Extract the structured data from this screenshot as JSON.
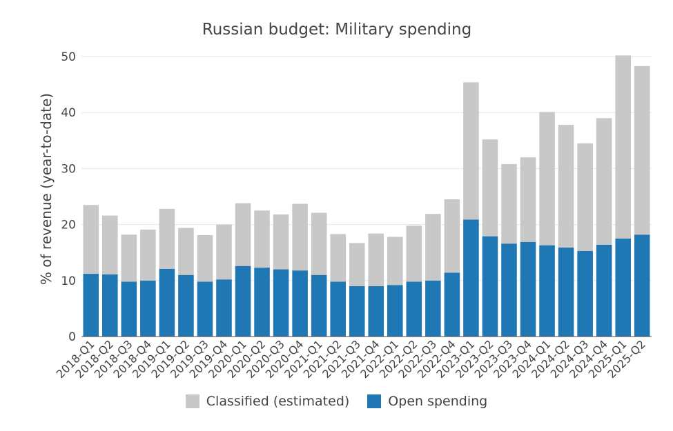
{
  "chart_data": {
    "type": "bar",
    "stacked": true,
    "title": "Russian budget: Military spending",
    "xlabel": "",
    "ylabel": "% of revenue (year-to-date)",
    "ylim": [
      0,
      50
    ],
    "yticks": [
      0,
      10,
      20,
      30,
      40,
      50
    ],
    "grid": true,
    "legend_position": "bottom",
    "categories": [
      "2018-Q1",
      "2018-Q2",
      "2018-Q3",
      "2018-Q4",
      "2019-Q1",
      "2019-Q2",
      "2019-Q3",
      "2019-Q4",
      "2020-Q1",
      "2020-Q2",
      "2020-Q3",
      "2020-Q4",
      "2021-Q1",
      "2021-Q2",
      "2021-Q3",
      "2021-Q4",
      "2022-Q1",
      "2022-Q2",
      "2022-Q3",
      "2022-Q4",
      "2023-Q1",
      "2023-Q2",
      "2023-Q3",
      "2023-Q4",
      "2024-Q1",
      "2024-Q2",
      "2024-Q3",
      "2024-Q4",
      "2025-Q1",
      "2025-Q2"
    ],
    "series": [
      {
        "name": "Open spending",
        "color": "#1f77b4",
        "values": [
          11.2,
          11.1,
          9.8,
          10.0,
          12.1,
          11.0,
          9.8,
          10.2,
          12.6,
          12.3,
          12.0,
          11.8,
          11.0,
          9.8,
          9.0,
          9.0,
          9.2,
          9.8,
          10.0,
          11.4,
          20.9,
          17.9,
          16.6,
          16.9,
          16.3,
          15.9,
          15.3,
          16.4,
          17.5,
          18.2
        ]
      },
      {
        "name": "Classified (estimated)",
        "color": "#c8c8c8",
        "values": [
          12.3,
          10.5,
          8.4,
          9.1,
          10.7,
          8.4,
          8.3,
          9.8,
          11.2,
          10.2,
          9.8,
          11.9,
          11.1,
          8.5,
          7.7,
          9.4,
          8.6,
          10.0,
          11.9,
          13.1,
          24.5,
          17.3,
          14.2,
          15.1,
          23.8,
          21.9,
          19.2,
          22.6,
          32.7,
          30.1
        ]
      }
    ]
  }
}
